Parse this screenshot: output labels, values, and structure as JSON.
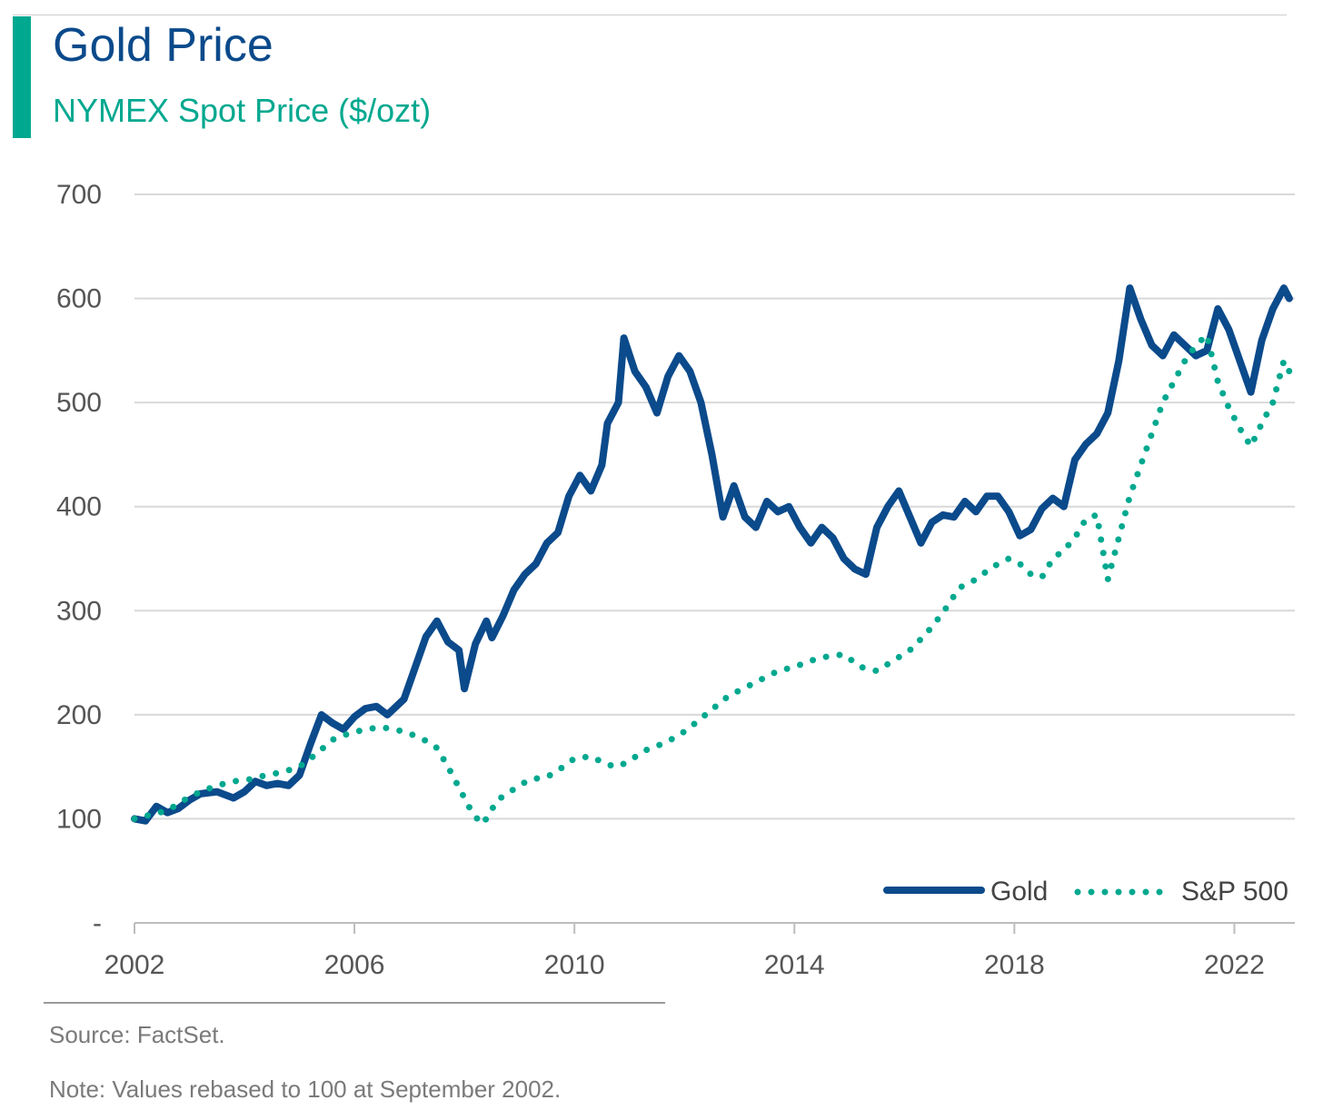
{
  "header": {
    "title": "Gold Price",
    "subtitle": "NYMEX Spot Price ($/ozt)"
  },
  "footer": {
    "source": "Source: FactSet.",
    "note": "Note: Values rebased to 100 at September 2002."
  },
  "colors": {
    "accent": "#00a88f",
    "gold_series": "#0b4a8b",
    "sp500_series": "#00a88f",
    "gridline": "#d9d9d9"
  },
  "chart_data": {
    "type": "line",
    "title": "Gold Price",
    "subtitle": "NYMEX Spot Price ($/ozt)",
    "xlabel": "",
    "ylabel": "",
    "xlim": [
      2002.0,
      2023.1
    ],
    "ylim": [
      0,
      700
    ],
    "x_ticks": [
      2002,
      2006,
      2010,
      2014,
      2018,
      2022
    ],
    "x_tick_labels": [
      "2002",
      "2006",
      "2010",
      "2014",
      "2018",
      "2022"
    ],
    "y_ticks": [
      0,
      100,
      200,
      300,
      400,
      500,
      600,
      700
    ],
    "y_tick_labels": [
      "-",
      "100",
      "200",
      "300",
      "400",
      "500",
      "600",
      "700"
    ],
    "grid": "horizontal",
    "legend": "bottom-right",
    "series": [
      {
        "name": "Gold",
        "style": "solid",
        "x": [
          2002.0,
          2002.2,
          2002.4,
          2002.6,
          2002.8,
          2003.0,
          2003.2,
          2003.5,
          2003.8,
          2004.0,
          2004.2,
          2004.4,
          2004.6,
          2004.8,
          2005.0,
          2005.2,
          2005.4,
          2005.6,
          2005.8,
          2006.0,
          2006.2,
          2006.4,
          2006.6,
          2006.9,
          2007.1,
          2007.3,
          2007.5,
          2007.7,
          2007.9,
          2008.0,
          2008.2,
          2008.4,
          2008.5,
          2008.7,
          2008.9,
          2009.1,
          2009.3,
          2009.5,
          2009.7,
          2009.9,
          2010.1,
          2010.3,
          2010.5,
          2010.6,
          2010.8,
          2010.9,
          2011.1,
          2011.3,
          2011.5,
          2011.7,
          2011.9,
          2012.1,
          2012.3,
          2012.5,
          2012.7,
          2012.9,
          2013.1,
          2013.3,
          2013.5,
          2013.7,
          2013.9,
          2014.1,
          2014.3,
          2014.5,
          2014.7,
          2014.9,
          2015.1,
          2015.3,
          2015.5,
          2015.7,
          2015.9,
          2016.1,
          2016.3,
          2016.5,
          2016.7,
          2016.9,
          2017.1,
          2017.3,
          2017.5,
          2017.7,
          2017.9,
          2018.1,
          2018.3,
          2018.5,
          2018.7,
          2018.9,
          2019.1,
          2019.3,
          2019.5,
          2019.7,
          2019.9,
          2020.1,
          2020.3,
          2020.5,
          2020.7,
          2020.9,
          2021.1,
          2021.3,
          2021.5,
          2021.7,
          2021.9,
          2022.1,
          2022.3,
          2022.5,
          2022.7,
          2022.9,
          2023.0
        ],
        "values": [
          100,
          98,
          112,
          106,
          110,
          118,
          124,
          126,
          120,
          126,
          136,
          132,
          134,
          132,
          142,
          172,
          200,
          192,
          186,
          198,
          206,
          208,
          200,
          215,
          245,
          275,
          290,
          270,
          262,
          225,
          268,
          290,
          274,
          295,
          320,
          335,
          345,
          365,
          375,
          410,
          430,
          415,
          440,
          480,
          500,
          562,
          530,
          515,
          490,
          525,
          545,
          530,
          500,
          450,
          390,
          420,
          390,
          380,
          405,
          395,
          400,
          380,
          365,
          380,
          370,
          350,
          340,
          335,
          380,
          400,
          415,
          390,
          365,
          385,
          392,
          390,
          405,
          395,
          410,
          410,
          395,
          372,
          378,
          398,
          408,
          400,
          445,
          460,
          470,
          490,
          540,
          610,
          580,
          555,
          545,
          565,
          555,
          545,
          550,
          590,
          570,
          540,
          510,
          560,
          590,
          610,
          600
        ],
        "color": "#0b4a8b"
      },
      {
        "name": "S&P 500",
        "style": "dotted",
        "x": [
          2002.0,
          2002.3,
          2002.6,
          2002.9,
          2003.2,
          2003.5,
          2003.8,
          2004.1,
          2004.4,
          2004.7,
          2005.0,
          2005.3,
          2005.6,
          2005.9,
          2006.2,
          2006.5,
          2006.8,
          2007.0,
          2007.3,
          2007.5,
          2007.7,
          2007.9,
          2008.1,
          2008.3,
          2008.4,
          2008.6,
          2008.8,
          2009.0,
          2009.2,
          2009.5,
          2009.8,
          2010.0,
          2010.3,
          2010.6,
          2010.8,
          2011.0,
          2011.3,
          2011.6,
          2011.9,
          2012.2,
          2012.5,
          2012.8,
          2013.1,
          2013.4,
          2013.7,
          2014.0,
          2014.3,
          2014.6,
          2014.9,
          2015.2,
          2015.5,
          2015.8,
          2016.1,
          2016.4,
          2016.7,
          2017.0,
          2017.3,
          2017.6,
          2017.9,
          2018.1,
          2018.3,
          2018.5,
          2018.7,
          2018.9,
          2019.1,
          2019.3,
          2019.5,
          2019.7,
          2019.9,
          2020.1,
          2020.3,
          2020.5,
          2020.7,
          2020.9,
          2021.1,
          2021.3,
          2021.5,
          2021.7,
          2021.9,
          2022.1,
          2022.3,
          2022.5,
          2022.7,
          2022.9,
          2023.0
        ],
        "values": [
          100,
          104,
          108,
          118,
          126,
          132,
          136,
          138,
          142,
          145,
          150,
          162,
          176,
          182,
          186,
          188,
          185,
          182,
          175,
          168,
          150,
          130,
          110,
          95,
          100,
          118,
          125,
          132,
          138,
          140,
          150,
          158,
          160,
          152,
          150,
          156,
          166,
          172,
          180,
          192,
          205,
          218,
          226,
          234,
          242,
          246,
          252,
          256,
          258,
          246,
          242,
          252,
          262,
          278,
          298,
          322,
          330,
          342,
          350,
          345,
          335,
          332,
          350,
          358,
          370,
          388,
          392,
          330,
          370,
          410,
          440,
          470,
          500,
          520,
          540,
          555,
          565,
          520,
          495,
          475,
          458,
          480,
          500,
          540,
          530
        ],
        "color": "#00a88f"
      }
    ]
  }
}
